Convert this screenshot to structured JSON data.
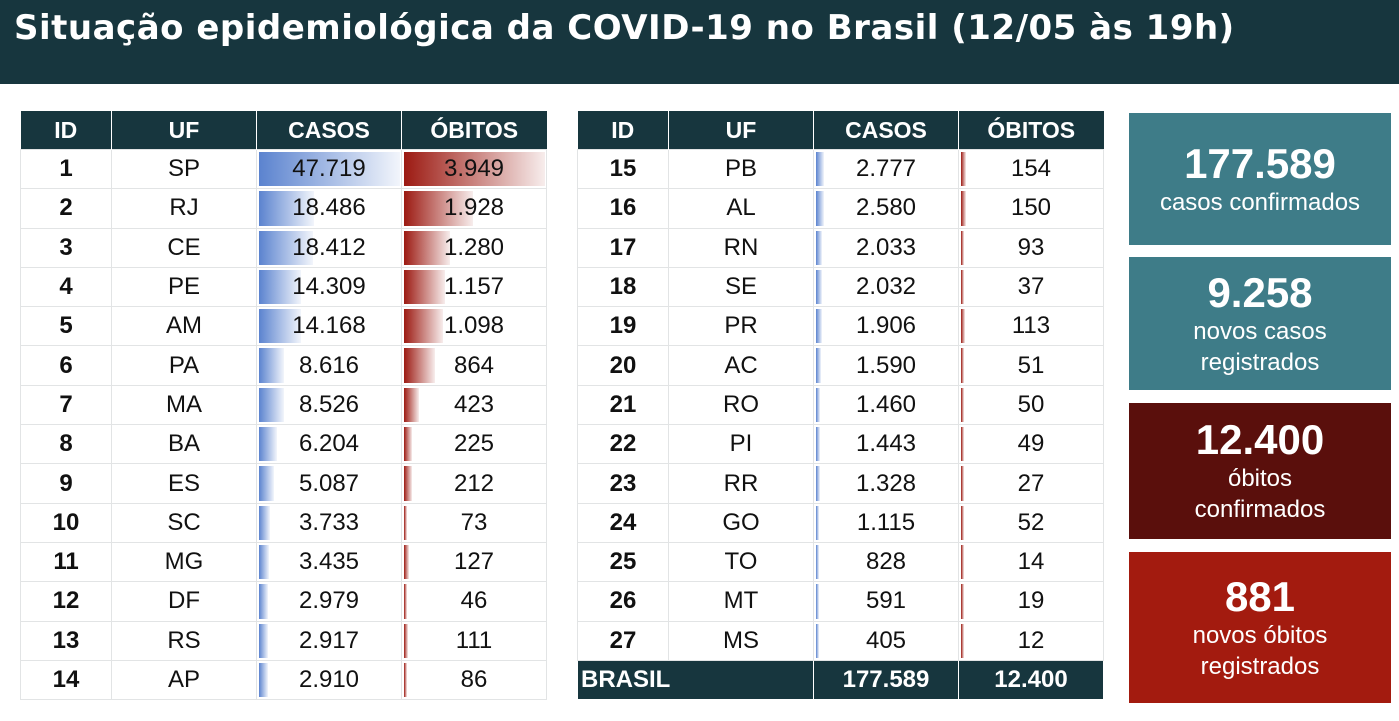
{
  "title": "Situação epidemiológica da COVID-19 no Brasil (12/05 às 19h)",
  "colors": {
    "header_bg": "#17363e",
    "casos_bar": "#5b83cf",
    "obitos_bar": "#9c1a12",
    "card_casos": "#3e7c88",
    "card_obitos": "#5a0f0c",
    "card_novos_obitos": "#a31b0f"
  },
  "chart_data": {
    "type": "table",
    "columns": [
      "ID",
      "UF",
      "CASOS",
      "ÓBITOS"
    ],
    "rows": [
      {
        "id": "1",
        "uf": "SP",
        "casos": "47.719",
        "obitos": "3.949",
        "casos_value": 47719,
        "obitos_value": 3949
      },
      {
        "id": "2",
        "uf": "RJ",
        "casos": "18.486",
        "obitos": "1.928",
        "casos_value": 18486,
        "obitos_value": 1928
      },
      {
        "id": "3",
        "uf": "CE",
        "casos": "18.412",
        "obitos": "1.280",
        "casos_value": 18412,
        "obitos_value": 1280
      },
      {
        "id": "4",
        "uf": "PE",
        "casos": "14.309",
        "obitos": "1.157",
        "casos_value": 14309,
        "obitos_value": 1157
      },
      {
        "id": "5",
        "uf": "AM",
        "casos": "14.168",
        "obitos": "1.098",
        "casos_value": 14168,
        "obitos_value": 1098
      },
      {
        "id": "6",
        "uf": "PA",
        "casos": "8.616",
        "obitos": "864",
        "casos_value": 8616,
        "obitos_value": 864
      },
      {
        "id": "7",
        "uf": "MA",
        "casos": "8.526",
        "obitos": "423",
        "casos_value": 8526,
        "obitos_value": 423
      },
      {
        "id": "8",
        "uf": "BA",
        "casos": "6.204",
        "obitos": "225",
        "casos_value": 6204,
        "obitos_value": 225
      },
      {
        "id": "9",
        "uf": "ES",
        "casos": "5.087",
        "obitos": "212",
        "casos_value": 5087,
        "obitos_value": 212
      },
      {
        "id": "10",
        "uf": "SC",
        "casos": "3.733",
        "obitos": "73",
        "casos_value": 3733,
        "obitos_value": 73
      },
      {
        "id": "11",
        "uf": "MG",
        "casos": "3.435",
        "obitos": "127",
        "casos_value": 3435,
        "obitos_value": 127
      },
      {
        "id": "12",
        "uf": "DF",
        "casos": "2.979",
        "obitos": "46",
        "casos_value": 2979,
        "obitos_value": 46
      },
      {
        "id": "13",
        "uf": "RS",
        "casos": "2.917",
        "obitos": "111",
        "casos_value": 2917,
        "obitos_value": 111
      },
      {
        "id": "14",
        "uf": "AP",
        "casos": "2.910",
        "obitos": "86",
        "casos_value": 2910,
        "obitos_value": 86
      },
      {
        "id": "15",
        "uf": "PB",
        "casos": "2.777",
        "obitos": "154",
        "casos_value": 2777,
        "obitos_value": 154
      },
      {
        "id": "16",
        "uf": "AL",
        "casos": "2.580",
        "obitos": "150",
        "casos_value": 2580,
        "obitos_value": 150
      },
      {
        "id": "17",
        "uf": "RN",
        "casos": "2.033",
        "obitos": "93",
        "casos_value": 2033,
        "obitos_value": 93
      },
      {
        "id": "18",
        "uf": "SE",
        "casos": "2.032",
        "obitos": "37",
        "casos_value": 2032,
        "obitos_value": 37
      },
      {
        "id": "19",
        "uf": "PR",
        "casos": "1.906",
        "obitos": "113",
        "casos_value": 1906,
        "obitos_value": 113
      },
      {
        "id": "20",
        "uf": "AC",
        "casos": "1.590",
        "obitos": "51",
        "casos_value": 1590,
        "obitos_value": 51
      },
      {
        "id": "21",
        "uf": "RO",
        "casos": "1.460",
        "obitos": "50",
        "casos_value": 1460,
        "obitos_value": 50
      },
      {
        "id": "22",
        "uf": "PI",
        "casos": "1.443",
        "obitos": "49",
        "casos_value": 1443,
        "obitos_value": 49
      },
      {
        "id": "23",
        "uf": "RR",
        "casos": "1.328",
        "obitos": "27",
        "casos_value": 1328,
        "obitos_value": 27
      },
      {
        "id": "24",
        "uf": "GO",
        "casos": "1.115",
        "obitos": "52",
        "casos_value": 1115,
        "obitos_value": 52
      },
      {
        "id": "25",
        "uf": "TO",
        "casos": "828",
        "obitos": "14",
        "casos_value": 828,
        "obitos_value": 14
      },
      {
        "id": "26",
        "uf": "MT",
        "casos": "591",
        "obitos": "19",
        "casos_value": 591,
        "obitos_value": 19
      },
      {
        "id": "27",
        "uf": "MS",
        "casos": "405",
        "obitos": "12",
        "casos_value": 405,
        "obitos_value": 12
      }
    ],
    "total": {
      "label": "BRASIL",
      "casos": "177.589",
      "obitos": "12.400"
    }
  },
  "cards": [
    {
      "number": "177.589",
      "lines": [
        "casos confirmados"
      ]
    },
    {
      "number": "9.258",
      "lines": [
        "novos casos",
        "registrados"
      ]
    },
    {
      "number": "12.400",
      "lines": [
        "óbitos",
        "confirmados"
      ]
    },
    {
      "number": "881",
      "lines": [
        "novos óbitos",
        "registrados"
      ]
    }
  ]
}
